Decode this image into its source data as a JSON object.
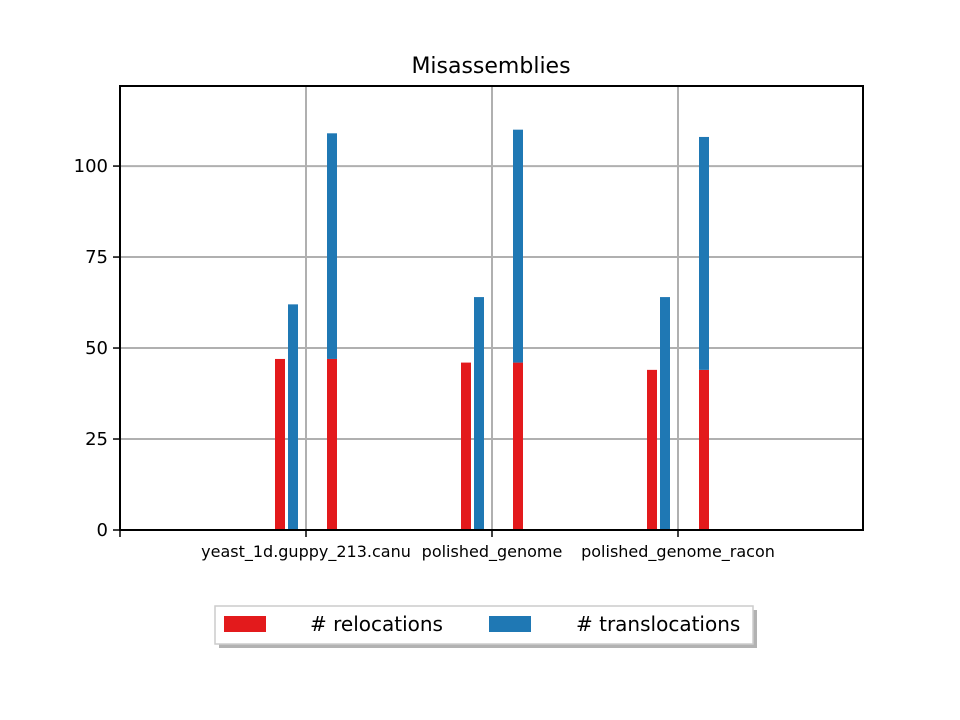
{
  "chart_data": {
    "type": "bar",
    "title": "Misassemblies",
    "xlabel": "",
    "ylabel": "",
    "categories": [
      "yeast_1d.guppy_213.canu",
      "polished_genome",
      "polished_genome_racon"
    ],
    "series": [
      {
        "name": "# relocations",
        "color": "#e31a1c",
        "values": [
          47,
          46,
          44
        ]
      },
      {
        "name": "# translocations",
        "color": "#1f78b4",
        "values": [
          62,
          64,
          64
        ]
      }
    ],
    "stacked_totals": {
      "relocations": [
        47,
        46,
        44
      ],
      "translocations": [
        62,
        64,
        64
      ],
      "total": [
        109,
        110,
        108
      ]
    },
    "ylim": [
      0,
      122
    ],
    "yticks": [
      0,
      25,
      50,
      75,
      100
    ],
    "grid": true,
    "legend_position": "bottom-center"
  }
}
